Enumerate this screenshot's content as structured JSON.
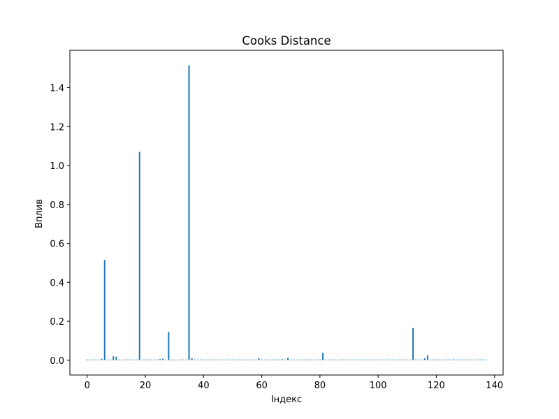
{
  "chart_data": {
    "type": "bar",
    "title": "Cooks Distance",
    "xlabel": "Індекс",
    "ylabel": "Вплив",
    "xlim": [
      -5.95,
      142.95
    ],
    "ylim": [
      -0.0758,
      1.5918
    ],
    "xticks": [
      0,
      20,
      40,
      60,
      80,
      100,
      120,
      140
    ],
    "yticks": [
      0.0,
      0.2,
      0.4,
      0.6,
      0.8,
      1.0,
      1.2,
      1.4
    ],
    "ytick_labels": [
      "0.0",
      "0.2",
      "0.4",
      "0.6",
      "0.8",
      "1.0",
      "1.2",
      "1.4"
    ],
    "grid": false,
    "color": "#1f77b4",
    "x": [
      0,
      1,
      2,
      3,
      4,
      5,
      6,
      7,
      8,
      9,
      10,
      11,
      12,
      13,
      14,
      15,
      16,
      17,
      18,
      19,
      20,
      21,
      22,
      23,
      24,
      25,
      26,
      27,
      28,
      29,
      30,
      31,
      32,
      33,
      34,
      35,
      36,
      37,
      38,
      39,
      40,
      41,
      42,
      43,
      44,
      45,
      46,
      47,
      48,
      49,
      50,
      51,
      52,
      53,
      54,
      55,
      56,
      57,
      58,
      59,
      60,
      61,
      62,
      63,
      64,
      65,
      66,
      67,
      68,
      69,
      70,
      71,
      72,
      73,
      74,
      75,
      76,
      77,
      78,
      79,
      80,
      81,
      82,
      83,
      84,
      85,
      86,
      87,
      88,
      89,
      90,
      91,
      92,
      93,
      94,
      95,
      96,
      97,
      98,
      99,
      100,
      101,
      102,
      103,
      104,
      105,
      106,
      107,
      108,
      109,
      110,
      111,
      112,
      113,
      114,
      115,
      116,
      117,
      118,
      119,
      120,
      121,
      122,
      123,
      124,
      125,
      126,
      127,
      128,
      129,
      130,
      131,
      132,
      133,
      134,
      135,
      136,
      137
    ],
    "values": [
      0.001,
      0.0005,
      0.0008,
      0.0012,
      0.001,
      0.008,
      0.515,
      0.001,
      0.002,
      0.02,
      0.018,
      0.003,
      0.001,
      0.002,
      0.004,
      0.001,
      0.002,
      0.001,
      1.07,
      0.001,
      0.002,
      0.001,
      0.003,
      0.002,
      0.004,
      0.006,
      0.008,
      0.001,
      0.145,
      0.002,
      0.001,
      0.003,
      0.002,
      0.001,
      0.002,
      1.515,
      0.01,
      0.003,
      0.002,
      0.004,
      0.001,
      0.002,
      0.001,
      0.003,
      0.001,
      0.002,
      0.001,
      0.001,
      0.002,
      0.001,
      0.003,
      0.002,
      0.004,
      0.001,
      0.002,
      0.001,
      0.002,
      0.001,
      0.003,
      0.01,
      0.002,
      0.001,
      0.002,
      0.001,
      0.003,
      0.002,
      0.004,
      0.006,
      0.002,
      0.012,
      0.002,
      0.001,
      0.002,
      0.001,
      0.003,
      0.001,
      0.002,
      0.001,
      0.002,
      0.001,
      0.003,
      0.038,
      0.002,
      0.001,
      0.002,
      0.001,
      0.002,
      0.003,
      0.001,
      0.002,
      0.001,
      0.002,
      0.001,
      0.003,
      0.001,
      0.002,
      0.003,
      0.001,
      0.002,
      0.001,
      0.004,
      0.001,
      0.002,
      0.001,
      0.003,
      0.001,
      0.002,
      0.001,
      0.002,
      0.001,
      0.002,
      0.003,
      0.165,
      0.002,
      0.001,
      0.003,
      0.01,
      0.025,
      0.002,
      0.001,
      0.003,
      0.002,
      0.004,
      0.001,
      0.002,
      0.001,
      0.005,
      0.001,
      0.002,
      0.001,
      0.002,
      0.003,
      0.001,
      0.002,
      0.001,
      0.002,
      0.001,
      0.002
    ]
  }
}
